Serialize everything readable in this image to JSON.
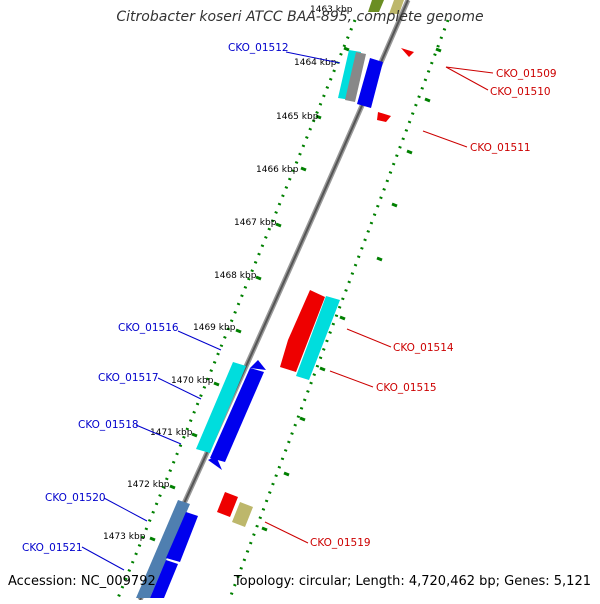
{
  "title": "Citrobacter koseri ATCC BAA-895, complete genome",
  "footer": {
    "accession": "Accession: NC_009792",
    "summary": "Topology: circular; Length: 4,720,462 bp; Genes: 5,121"
  },
  "colors": {
    "forward_cds": "#0000ee",
    "reverse_cds": "#ee0000",
    "rna_like": "#00dddd",
    "other": "#bdb76b",
    "left_labels": "#0000cc",
    "right_labels": "#cc0000",
    "ruler": "#008000",
    "backbone": "#777777"
  },
  "ruler_labels": [
    "1463 kbp",
    "1464 kbp",
    "1465 kbp",
    "1466 kbp",
    "1467 kbp",
    "1468 kbp",
    "1469 kbp",
    "1470 kbp",
    "1471 kbp",
    "1472 kbp",
    "1473 kbp"
  ],
  "left_gene_labels": [
    "CKO_01512",
    "CKO_01516",
    "CKO_01517",
    "CKO_01518",
    "CKO_01520",
    "CKO_01521"
  ],
  "right_gene_labels": [
    "CKO_01509",
    "CKO_01510",
    "CKO_01511",
    "CKO_01514",
    "CKO_01515",
    "CKO_01519"
  ]
}
